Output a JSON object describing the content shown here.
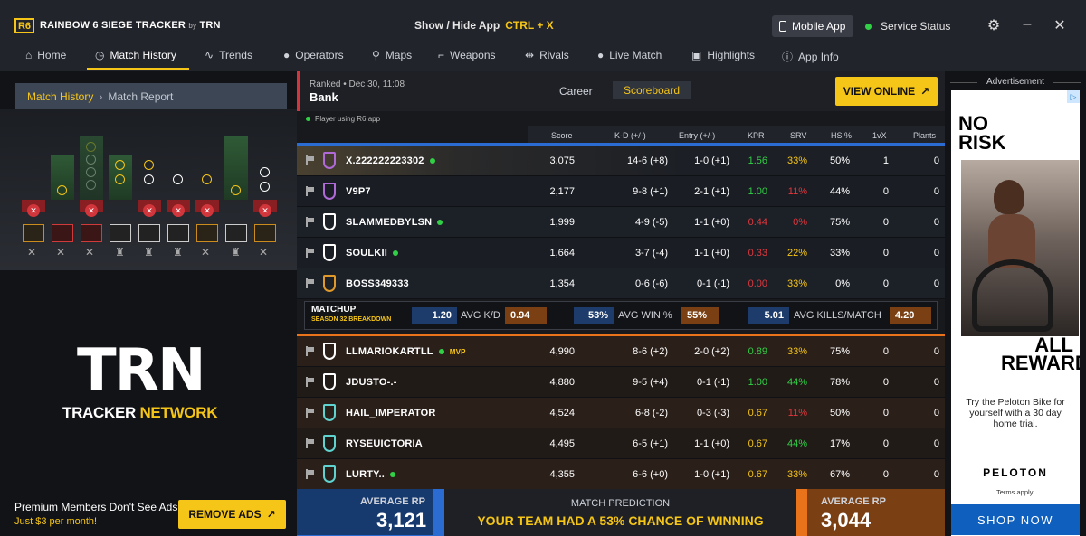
{
  "app": {
    "logo_mark": "R6",
    "logo_text": "RAINBOW 6 SIEGE TRACKER",
    "logo_by": "by",
    "logo_trn": "TRN",
    "show_hide_label": "Show / Hide App",
    "show_hide_key": "CTRL + X",
    "mobile_app": "Mobile App",
    "service_status": "Service Status",
    "colors": {
      "accent": "#f5c518",
      "win": "#31d046",
      "loss": "#e0383e",
      "blue_team": "#2a6cd1",
      "orange_team": "#e8731b"
    }
  },
  "nav": [
    {
      "label": "Home",
      "icon": "home-icon"
    },
    {
      "label": "Match History",
      "icon": "history-icon",
      "active": true
    },
    {
      "label": "Trends",
      "icon": "trend-icon"
    },
    {
      "label": "Operators",
      "icon": "user-icon"
    },
    {
      "label": "Maps",
      "icon": "map-pin-icon"
    },
    {
      "label": "Weapons",
      "icon": "gun-icon"
    },
    {
      "label": "Rivals",
      "icon": "rivals-icon"
    },
    {
      "label": "Live Match",
      "icon": "live-dot-icon"
    },
    {
      "label": "Highlights",
      "icon": "film-icon"
    },
    {
      "label": "App Info",
      "icon": "info-icon"
    }
  ],
  "breadcrumb": {
    "root": "Match History",
    "current": "Match Report"
  },
  "sidebar": {
    "trn_logo": "TRN",
    "trn_network_white": "TRACKER",
    "trn_network_yellow": "NETWORK",
    "premium_text": "Premium Members Don't See Ads",
    "premium_price": "Just $3 per month!",
    "remove_ads": "REMOVE ADS"
  },
  "match": {
    "meta": "Ranked • Dec 30, 11:08",
    "map": "Bank",
    "tab_career": "Career",
    "tab_scoreboard": "Scoreboard",
    "view_online": "VIEW ONLINE",
    "r6_app_note": "Player using R6 app"
  },
  "columns": [
    "Score",
    "K-D (+/-)",
    "Entry (+/-)",
    "KPR",
    "SRV",
    "HS %",
    "1vX",
    "Plants"
  ],
  "blue_team": [
    {
      "name": "X.222222223302",
      "online": true,
      "score": "3,075",
      "kd": "14-6 (+8)",
      "entry": "1-0 (+1)",
      "kpr": "1.56",
      "kpr_c": "g",
      "srv": "33%",
      "srv_c": "y",
      "hs": "50%",
      "onevx": "1",
      "plants": "0",
      "rank_color": "#b06ad8",
      "highlight": true
    },
    {
      "name": "V9P7",
      "online": false,
      "score": "2,177",
      "kd": "9-8 (+1)",
      "entry": "2-1 (+1)",
      "kpr": "1.00",
      "kpr_c": "g",
      "srv": "11%",
      "srv_c": "r",
      "hs": "44%",
      "onevx": "0",
      "plants": "0",
      "rank_color": "#b06ad8"
    },
    {
      "name": "SLAMMEDBYLSN",
      "online": true,
      "score": "1,999",
      "kd": "4-9 (-5)",
      "entry": "1-1 (+0)",
      "kpr": "0.44",
      "kpr_c": "r",
      "srv": "0%",
      "srv_c": "r",
      "hs": "75%",
      "onevx": "0",
      "plants": "0",
      "rank_color": "#ffffff"
    },
    {
      "name": "SOULKII",
      "online": true,
      "score": "1,664",
      "kd": "3-7 (-4)",
      "entry": "1-1 (+0)",
      "kpr": "0.33",
      "kpr_c": "r",
      "srv": "22%",
      "srv_c": "y",
      "hs": "33%",
      "onevx": "0",
      "plants": "0",
      "rank_color": "#ffffff"
    },
    {
      "name": "BOSS349333",
      "online": false,
      "score": "1,354",
      "kd": "0-6 (-6)",
      "entry": "0-1 (-1)",
      "kpr": "0.00",
      "kpr_c": "r",
      "srv": "33%",
      "srv_c": "y",
      "hs": "0%",
      "onevx": "0",
      "plants": "0",
      "rank_color": "#e09a2b"
    }
  ],
  "matchup": {
    "title": "MATCHUP",
    "subtitle": "SEASON 32 BREAKDOWN",
    "kd_blue": "1.20",
    "kd_label": "AVG K/D",
    "kd_orange": "0.94",
    "win_blue": "53%",
    "win_label": "AVG WIN %",
    "win_orange": "55%",
    "kills_blue": "5.01",
    "kills_label": "AVG KILLS/MATCH",
    "kills_orange": "4.20"
  },
  "orange_team": [
    {
      "name": "LLMARIOKARTLL",
      "online": true,
      "mvp": "MVP",
      "score": "4,990",
      "kd": "8-6 (+2)",
      "entry": "2-0 (+2)",
      "kpr": "0.89",
      "kpr_c": "g",
      "srv": "33%",
      "srv_c": "y",
      "hs": "75%",
      "onevx": "0",
      "plants": "0",
      "rank_color": "#ffffff"
    },
    {
      "name": "JDUSTO-.-",
      "online": false,
      "score": "4,880",
      "kd": "9-5 (+4)",
      "entry": "0-1 (-1)",
      "kpr": "1.00",
      "kpr_c": "g",
      "srv": "44%",
      "srv_c": "g",
      "hs": "78%",
      "onevx": "0",
      "plants": "0",
      "rank_color": "#ffffff"
    },
    {
      "name": "HAIL_IMPERATOR",
      "online": false,
      "score": "4,524",
      "kd": "6-8 (-2)",
      "entry": "0-3 (-3)",
      "kpr": "0.67",
      "kpr_c": "y",
      "srv": "11%",
      "srv_c": "r",
      "hs": "50%",
      "onevx": "0",
      "plants": "0",
      "rank_color": "#5fd3d0"
    },
    {
      "name": "RYSEUICTORIA",
      "online": false,
      "score": "4,495",
      "kd": "6-5 (+1)",
      "entry": "1-1 (+0)",
      "kpr": "0.67",
      "kpr_c": "y",
      "srv": "44%",
      "srv_c": "g",
      "hs": "17%",
      "onevx": "0",
      "plants": "0",
      "rank_color": "#5fd3d0"
    },
    {
      "name": "LURTY..",
      "online": true,
      "score": "4,355",
      "kd": "6-6 (+0)",
      "entry": "1-0 (+1)",
      "kpr": "0.67",
      "kpr_c": "y",
      "srv": "33%",
      "srv_c": "y",
      "hs": "67%",
      "onevx": "0",
      "plants": "0",
      "rank_color": "#5fd3d0"
    }
  ],
  "footer": {
    "avg_rp_label": "AVERAGE RP",
    "blue_rp": "3,121",
    "orange_rp": "3,044",
    "prediction_label": "MATCH PREDICTION",
    "prediction_text": "YOUR TEAM HAD A 53% CHANCE OF WINNING"
  },
  "ad": {
    "label": "Advertisement",
    "headline": "NO RISK",
    "reward": "ALL REWARD",
    "body": "Try the Peloton Bike for yourself with a 30 day home trial.",
    "brand": "PELOTON",
    "terms": "Terms apply.",
    "cta": "SHOP NOW"
  }
}
